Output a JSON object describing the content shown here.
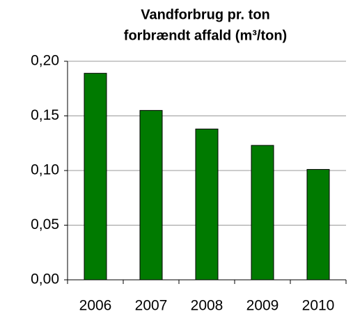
{
  "chart_data": {
    "type": "bar",
    "title": [
      "Vandforbrug pr. ton",
      "forbrændt affald (m³/ton)"
    ],
    "categories": [
      "2006",
      "2007",
      "2008",
      "2009",
      "2010"
    ],
    "values": [
      0.189,
      0.155,
      0.138,
      0.123,
      0.101
    ],
    "color": "#007a00",
    "ylim": [
      0,
      0.2
    ],
    "yticks": [
      {
        "value": 0,
        "label": "0,00"
      },
      {
        "value": 0.05,
        "label": "0,05"
      },
      {
        "value": 0.1,
        "label": "0,10"
      },
      {
        "value": 0.15,
        "label": "0,15"
      },
      {
        "value": 0.2,
        "label": "0,20"
      }
    ],
    "grid": true
  }
}
